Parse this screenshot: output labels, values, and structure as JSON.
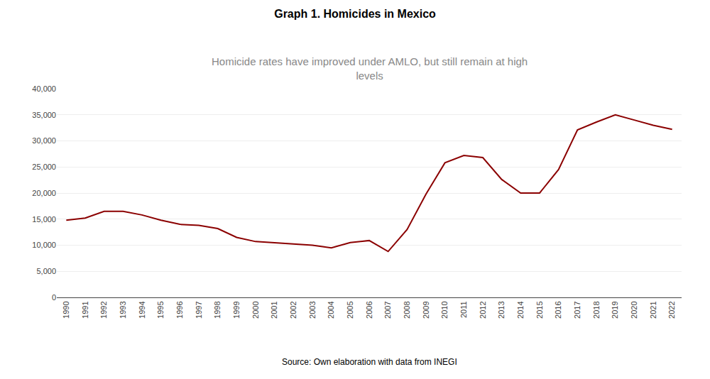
{
  "chart_data": {
    "type": "line",
    "title": "Graph 1. Homicides in Mexico",
    "subtitle": "Homicide rates have improved under AMLO, but still remain at high\nlevels",
    "annotations": [
      "Source: Own elaboration with data from INEGI"
    ],
    "x": [
      1990,
      1991,
      1992,
      1993,
      1994,
      1995,
      1996,
      1997,
      1998,
      1999,
      2000,
      2001,
      2002,
      2003,
      2004,
      2005,
      2006,
      2007,
      2008,
      2009,
      2010,
      2011,
      2012,
      2013,
      2014,
      2015,
      2016,
      2017,
      2018,
      2019,
      2020,
      2021,
      2022
    ],
    "values": [
      14800,
      15200,
      16500,
      16500,
      15800,
      14800,
      14000,
      13800,
      13200,
      11500,
      10700,
      10500,
      10200,
      10000,
      9500,
      10500,
      10900,
      8800,
      13000,
      19800,
      25800,
      27200,
      26800,
      22600,
      20000,
      20000,
      24500,
      32100,
      33600,
      35000,
      34000,
      33000,
      32200
    ],
    "color": "#8B0000",
    "xlim": [
      1989.5,
      2022.5
    ],
    "xticks": [
      1990,
      1991,
      1992,
      1993,
      1994,
      1995,
      1996,
      1997,
      1998,
      1999,
      2000,
      2001,
      2002,
      2003,
      2004,
      2005,
      2006,
      2007,
      2008,
      2009,
      2010,
      2011,
      2012,
      2013,
      2014,
      2015,
      2016,
      2017,
      2018,
      2019,
      2020,
      2021,
      2022
    ],
    "ylim": [
      0,
      40000
    ],
    "yticks": [
      0,
      {
        "value": 5000,
        "label": "5,000"
      },
      {
        "value": 10000,
        "label": "10,000"
      },
      {
        "value": 15000,
        "label": "15,000"
      },
      {
        "value": 20000,
        "label": "20,000"
      },
      {
        "value": 25000,
        "label": "25,000"
      },
      {
        "value": 30000,
        "label": "30,000"
      },
      {
        "value": 35000,
        "label": "35,000"
      },
      {
        "value": 40000,
        "label": "40,000"
      }
    ],
    "grid": true
  }
}
